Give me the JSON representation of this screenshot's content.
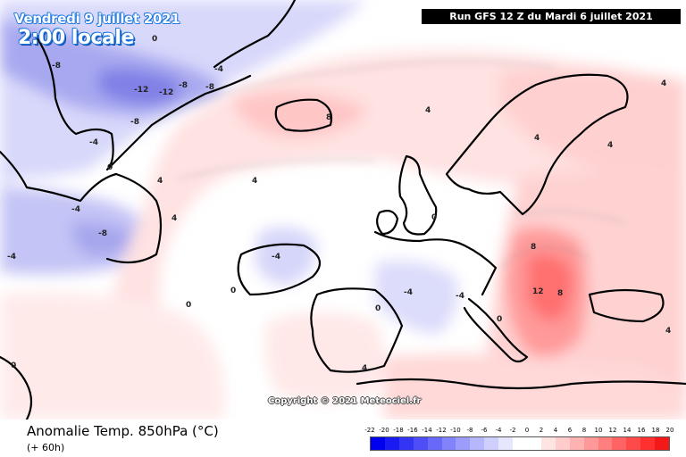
{
  "header": {
    "date": "Vendredi 9 juillet 2021",
    "time": "2:00 locale",
    "run": "Run GFS 12 Z du Mardi 6 juillet 2021"
  },
  "copyright": "Copyright © 2021 Meteociel.fr",
  "footer": {
    "title": "Anomalie Temp. 850hPa (°C)",
    "lead": "(+ 60h)"
  },
  "legend": {
    "ticks": [
      "-22",
      "-20",
      "-18",
      "-16",
      "-14",
      "-12",
      "-10",
      "-8",
      "-6",
      "-4",
      "-2",
      "0",
      "2",
      "4",
      "6",
      "8",
      "10",
      "12",
      "14",
      "16",
      "18",
      "20"
    ],
    "colors": [
      "#0000ee",
      "#1a1af2",
      "#3434f5",
      "#4e4ef7",
      "#6868f9",
      "#8282fb",
      "#9c9cfc",
      "#b6b6fd",
      "#cfcffe",
      "#e6e6ff",
      "#ffffff",
      "#ffffff",
      "#ffe4e4",
      "#ffcccc",
      "#ffb2b2",
      "#ff9898",
      "#ff7e7e",
      "#ff6464",
      "#ff4a4a",
      "#ff3030",
      "#f51818"
    ]
  },
  "map": {
    "region": "Europe / North Atlantic",
    "contour_labels": [
      "-12",
      "-12",
      "-8",
      "-8",
      "-8",
      "-8",
      "-8",
      "-4",
      "-4",
      "-4",
      "-4",
      "-4",
      "-4",
      "-4",
      "0",
      "0",
      "0",
      "0",
      "0",
      "0",
      "0",
      "0",
      "4",
      "4",
      "4",
      "4",
      "4",
      "4",
      "4",
      "4",
      "4",
      "8",
      "8",
      "8",
      "12"
    ]
  }
}
